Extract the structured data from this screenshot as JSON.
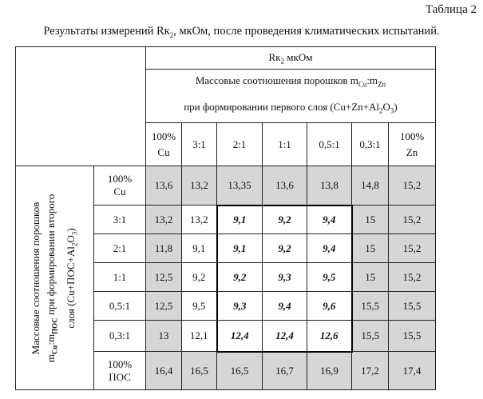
{
  "table_number": "Таблица 2",
  "caption": "Результаты измерений Rк₂, мкОм, после проведения климатических испытаний.",
  "header": {
    "measure": "Rк₂ мкОм",
    "subtitle_line1": "Массовые соотношения порошков mCu:mZn",
    "subtitle_line2": "при формировании первого слоя (Cu+Zn+Al₂O₃)"
  },
  "row_axis_label_line1": "Массовые соотношения порошков",
  "row_axis_label_line2": "mCu:mПОС при формировании второго",
  "row_axis_label_line3": "слоя (Cu+ПОС+Al₂O₃)",
  "columns": [
    {
      "top": "100%",
      "bottom": "Cu"
    },
    {
      "top": "3:1",
      "bottom": ""
    },
    {
      "top": "2:1",
      "bottom": ""
    },
    {
      "top": "1:1",
      "bottom": ""
    },
    {
      "top": "0,5:1",
      "bottom": ""
    },
    {
      "top": "0,3:1",
      "bottom": ""
    },
    {
      "top": "100%",
      "bottom": "Zn"
    }
  ],
  "rows": [
    {
      "top": "100%",
      "bottom": "Cu",
      "cells": [
        "13,6",
        "13,2",
        "13,35",
        "13,6",
        "13,8",
        "14,8",
        "15,2"
      ]
    },
    {
      "top": "3:1",
      "bottom": "",
      "cells": [
        "13,2",
        "13,2",
        "9,1",
        "9,2",
        "9,4",
        "15",
        "15,2"
      ]
    },
    {
      "top": "2:1",
      "bottom": "",
      "cells": [
        "11,8",
        "9,1",
        "9,1",
        "9,2",
        "9,4",
        "15",
        "15,2"
      ]
    },
    {
      "top": "1:1",
      "bottom": "",
      "cells": [
        "12,5",
        "9,2",
        "9,2",
        "9,3",
        "9,5",
        "15",
        "15,2"
      ]
    },
    {
      "top": "0,5:1",
      "bottom": "",
      "cells": [
        "12,5",
        "9,5",
        "9,3",
        "9,4",
        "9,6",
        "15,5",
        "15,5"
      ]
    },
    {
      "top": "0,3:1",
      "bottom": "",
      "cells": [
        "13",
        "12,1",
        "12,4",
        "12,4",
        "12,6",
        "15,5",
        "15,5"
      ]
    },
    {
      "top": "100%",
      "bottom": "ПОС",
      "cells": [
        "16,4",
        "16,5",
        "16,5",
        "16,7",
        "16,9",
        "17,2",
        "17,4"
      ]
    }
  ]
}
